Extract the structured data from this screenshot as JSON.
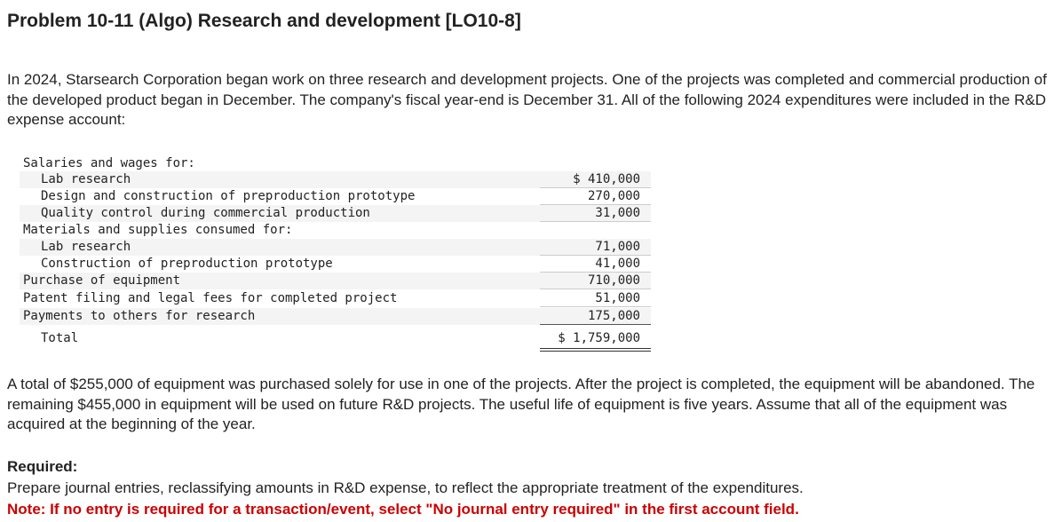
{
  "header": {
    "title": "Problem 10-11 (Algo) Research and development [LO10-8]"
  },
  "intro": "In 2024, Starsearch Corporation began work on three research and development projects. One of the projects was completed and commercial production of the developed product began in December. The company's fiscal year-end is December 31. All of the following 2024 expenditures were included in the R&D expense account:",
  "table": {
    "rows": [
      [
        "Salaries and wages for:"
      ],
      [
        "Lab research",
        "$ 410,000"
      ],
      [
        "Design and construction of preproduction prototype",
        "270,000"
      ],
      [
        "Quality control during commercial production",
        "31,000"
      ],
      [
        "Materials and supplies consumed for:"
      ],
      [
        "Lab research",
        "71,000"
      ],
      [
        "Construction of preproduction prototype",
        "41,000"
      ],
      [
        "Purchase of equipment",
        "710,000"
      ],
      [
        "Patent filing and legal fees for completed project",
        "51,000"
      ],
      [
        "Payments to others for research",
        "175,000"
      ],
      [
        "Total",
        "$ 1,759,000"
      ]
    ]
  },
  "paragraph": "A total of $255,000 of equipment was purchased solely for use in one of the projects. After the project is completed, the equipment will be abandoned. The remaining $455,000 in equipment will be used on future R&D projects. The useful life of equipment is five years. Assume that all of the equipment was acquired at the beginning of the year.",
  "required": {
    "heading": "Required:",
    "text": "Prepare journal entries, reclassifying amounts in R&D expense, to reflect the appropriate treatment of the expenditures.",
    "note": "Note: If no entry is required for a transaction/event, select \"No journal entry required\" in the first account field."
  }
}
